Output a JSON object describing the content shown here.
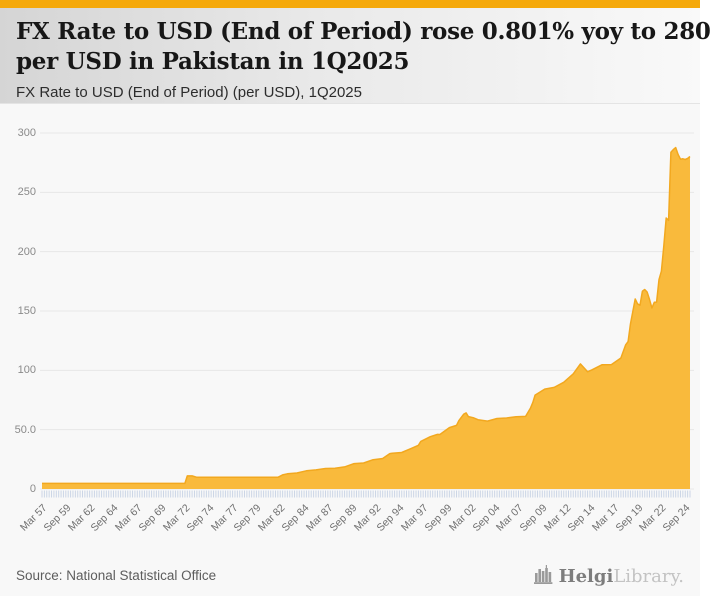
{
  "theme": {
    "accent_bar": "#F5A90B",
    "area_fill": "#F9BA3C",
    "area_stroke": "#F2A81F",
    "grid_color": "#E7E7E7",
    "tick_comb_color": "#CBD5E6",
    "header_text": "#171717"
  },
  "header": {
    "title_lines": [
      "FX Rate to USD (End of Period) rose 0.801% yoy to 280",
      "per USD in Pakistan in 1Q2025"
    ],
    "subtitle": "FX Rate to USD (End of Period) (per USD), 1Q2025"
  },
  "footer": {
    "source": "Source: National Statistical Office",
    "logo_bold": "Helgi",
    "logo_light": "Library."
  },
  "chart_data": {
    "type": "area",
    "series_name": "FX Rate to USD (End of Period) (per USD)",
    "country": "Pakistan",
    "period_latest": "1Q2025",
    "latest_value": 280,
    "yoy_change_pct": 0.801,
    "x_range": [
      1957.0,
      2025.0
    ],
    "x_unit": "decimal year, quarterly (Mar=.0, Jun=.25, Sep=.5, Dec=.75)",
    "ylim": [
      0,
      300
    ],
    "grid": true,
    "legend_position": "none",
    "y_ticks": [
      {
        "v": 0,
        "label": "0"
      },
      {
        "v": 50,
        "label": "50.0"
      },
      {
        "v": 100,
        "label": "100"
      },
      {
        "v": 150,
        "label": "150"
      },
      {
        "v": 200,
        "label": "200"
      },
      {
        "v": 250,
        "label": "250"
      },
      {
        "v": 300,
        "label": "300"
      }
    ],
    "x_ticks": [
      {
        "t": 1957.0,
        "label": "Mar 57"
      },
      {
        "t": 1959.5,
        "label": "Sep 59"
      },
      {
        "t": 1962.0,
        "label": "Mar 62"
      },
      {
        "t": 1964.5,
        "label": "Sep 64"
      },
      {
        "t": 1967.0,
        "label": "Mar 67"
      },
      {
        "t": 1969.5,
        "label": "Sep 69"
      },
      {
        "t": 1972.0,
        "label": "Mar 72"
      },
      {
        "t": 1974.5,
        "label": "Sep 74"
      },
      {
        "t": 1977.0,
        "label": "Mar 77"
      },
      {
        "t": 1979.5,
        "label": "Sep 79"
      },
      {
        "t": 1982.0,
        "label": "Mar 82"
      },
      {
        "t": 1984.5,
        "label": "Sep 84"
      },
      {
        "t": 1987.0,
        "label": "Mar 87"
      },
      {
        "t": 1989.5,
        "label": "Sep 89"
      },
      {
        "t": 1992.0,
        "label": "Mar 92"
      },
      {
        "t": 1994.5,
        "label": "Sep 94"
      },
      {
        "t": 1997.0,
        "label": "Mar 97"
      },
      {
        "t": 1999.5,
        "label": "Sep 99"
      },
      {
        "t": 2002.0,
        "label": "Mar 02"
      },
      {
        "t": 2004.5,
        "label": "Sep 04"
      },
      {
        "t": 2007.0,
        "label": "Mar 07"
      },
      {
        "t": 2009.5,
        "label": "Sep 09"
      },
      {
        "t": 2012.0,
        "label": "Mar 12"
      },
      {
        "t": 2014.5,
        "label": "Sep 14"
      },
      {
        "t": 2017.0,
        "label": "Mar 17"
      },
      {
        "t": 2019.5,
        "label": "Sep 19"
      },
      {
        "t": 2022.0,
        "label": "Mar 22"
      },
      {
        "t": 2024.5,
        "label": "Sep 24"
      }
    ],
    "points": [
      [
        1957.0,
        4.76
      ],
      [
        1971.75,
        4.76
      ],
      [
        1972.0,
        4.76
      ],
      [
        1972.25,
        11.01
      ],
      [
        1972.75,
        11.01
      ],
      [
        1973.25,
        9.9
      ],
      [
        1981.75,
        9.9
      ],
      [
        1982.25,
        11.85
      ],
      [
        1982.75,
        12.84
      ],
      [
        1983.75,
        13.5
      ],
      [
        1984.75,
        15.36
      ],
      [
        1985.75,
        16.13
      ],
      [
        1986.75,
        17.25
      ],
      [
        1987.75,
        17.45
      ],
      [
        1988.75,
        18.65
      ],
      [
        1989.75,
        21.42
      ],
      [
        1990.75,
        21.9
      ],
      [
        1991.75,
        24.72
      ],
      [
        1992.75,
        25.7
      ],
      [
        1993.5,
        29.85
      ],
      [
        1993.75,
        30.16
      ],
      [
        1994.75,
        30.8
      ],
      [
        1995.75,
        34.25
      ],
      [
        1996.5,
        36.8
      ],
      [
        1996.75,
        40.12
      ],
      [
        1997.75,
        44.05
      ],
      [
        1998.5,
        46.0
      ],
      [
        1998.75,
        45.9
      ],
      [
        1999.75,
        51.7
      ],
      [
        2000.5,
        53.6
      ],
      [
        2000.75,
        57.6
      ],
      [
        2001.25,
        63.0
      ],
      [
        2001.5,
        64.1
      ],
      [
        2001.75,
        61.0
      ],
      [
        2002.25,
        60.1
      ],
      [
        2002.75,
        58.4
      ],
      [
        2003.75,
        57.2
      ],
      [
        2004.75,
        59.4
      ],
      [
        2005.75,
        59.8
      ],
      [
        2006.75,
        60.9
      ],
      [
        2007.75,
        61.2
      ],
      [
        2008.25,
        68.0
      ],
      [
        2008.5,
        72.8
      ],
      [
        2008.75,
        79.1
      ],
      [
        2009.75,
        84.2
      ],
      [
        2010.75,
        85.6
      ],
      [
        2011.75,
        89.9
      ],
      [
        2012.75,
        97.1
      ],
      [
        2013.5,
        105.4
      ],
      [
        2014.25,
        98.8
      ],
      [
        2014.75,
        100.5
      ],
      [
        2015.75,
        104.7
      ],
      [
        2016.75,
        104.8
      ],
      [
        2017.75,
        110.4
      ],
      [
        2018.25,
        121.5
      ],
      [
        2018.5,
        124.2
      ],
      [
        2018.75,
        138.8
      ],
      [
        2019.25,
        160.1
      ],
      [
        2019.5,
        156.0
      ],
      [
        2019.75,
        154.9
      ],
      [
        2020.0,
        166.7
      ],
      [
        2020.25,
        168.1
      ],
      [
        2020.5,
        166.0
      ],
      [
        2020.75,
        159.8
      ],
      [
        2021.0,
        152.5
      ],
      [
        2021.25,
        157.3
      ],
      [
        2021.5,
        157.5
      ],
      [
        2021.75,
        176.5
      ],
      [
        2022.0,
        183.5
      ],
      [
        2022.25,
        204.8
      ],
      [
        2022.5,
        228.4
      ],
      [
        2022.75,
        226.4
      ],
      [
        2023.0,
        283.8
      ],
      [
        2023.25,
        286.0
      ],
      [
        2023.5,
        287.7
      ],
      [
        2023.75,
        281.9
      ],
      [
        2024.0,
        277.9
      ],
      [
        2024.25,
        278.3
      ],
      [
        2024.5,
        277.7
      ],
      [
        2024.75,
        278.5
      ],
      [
        2025.0,
        280.2
      ]
    ]
  }
}
